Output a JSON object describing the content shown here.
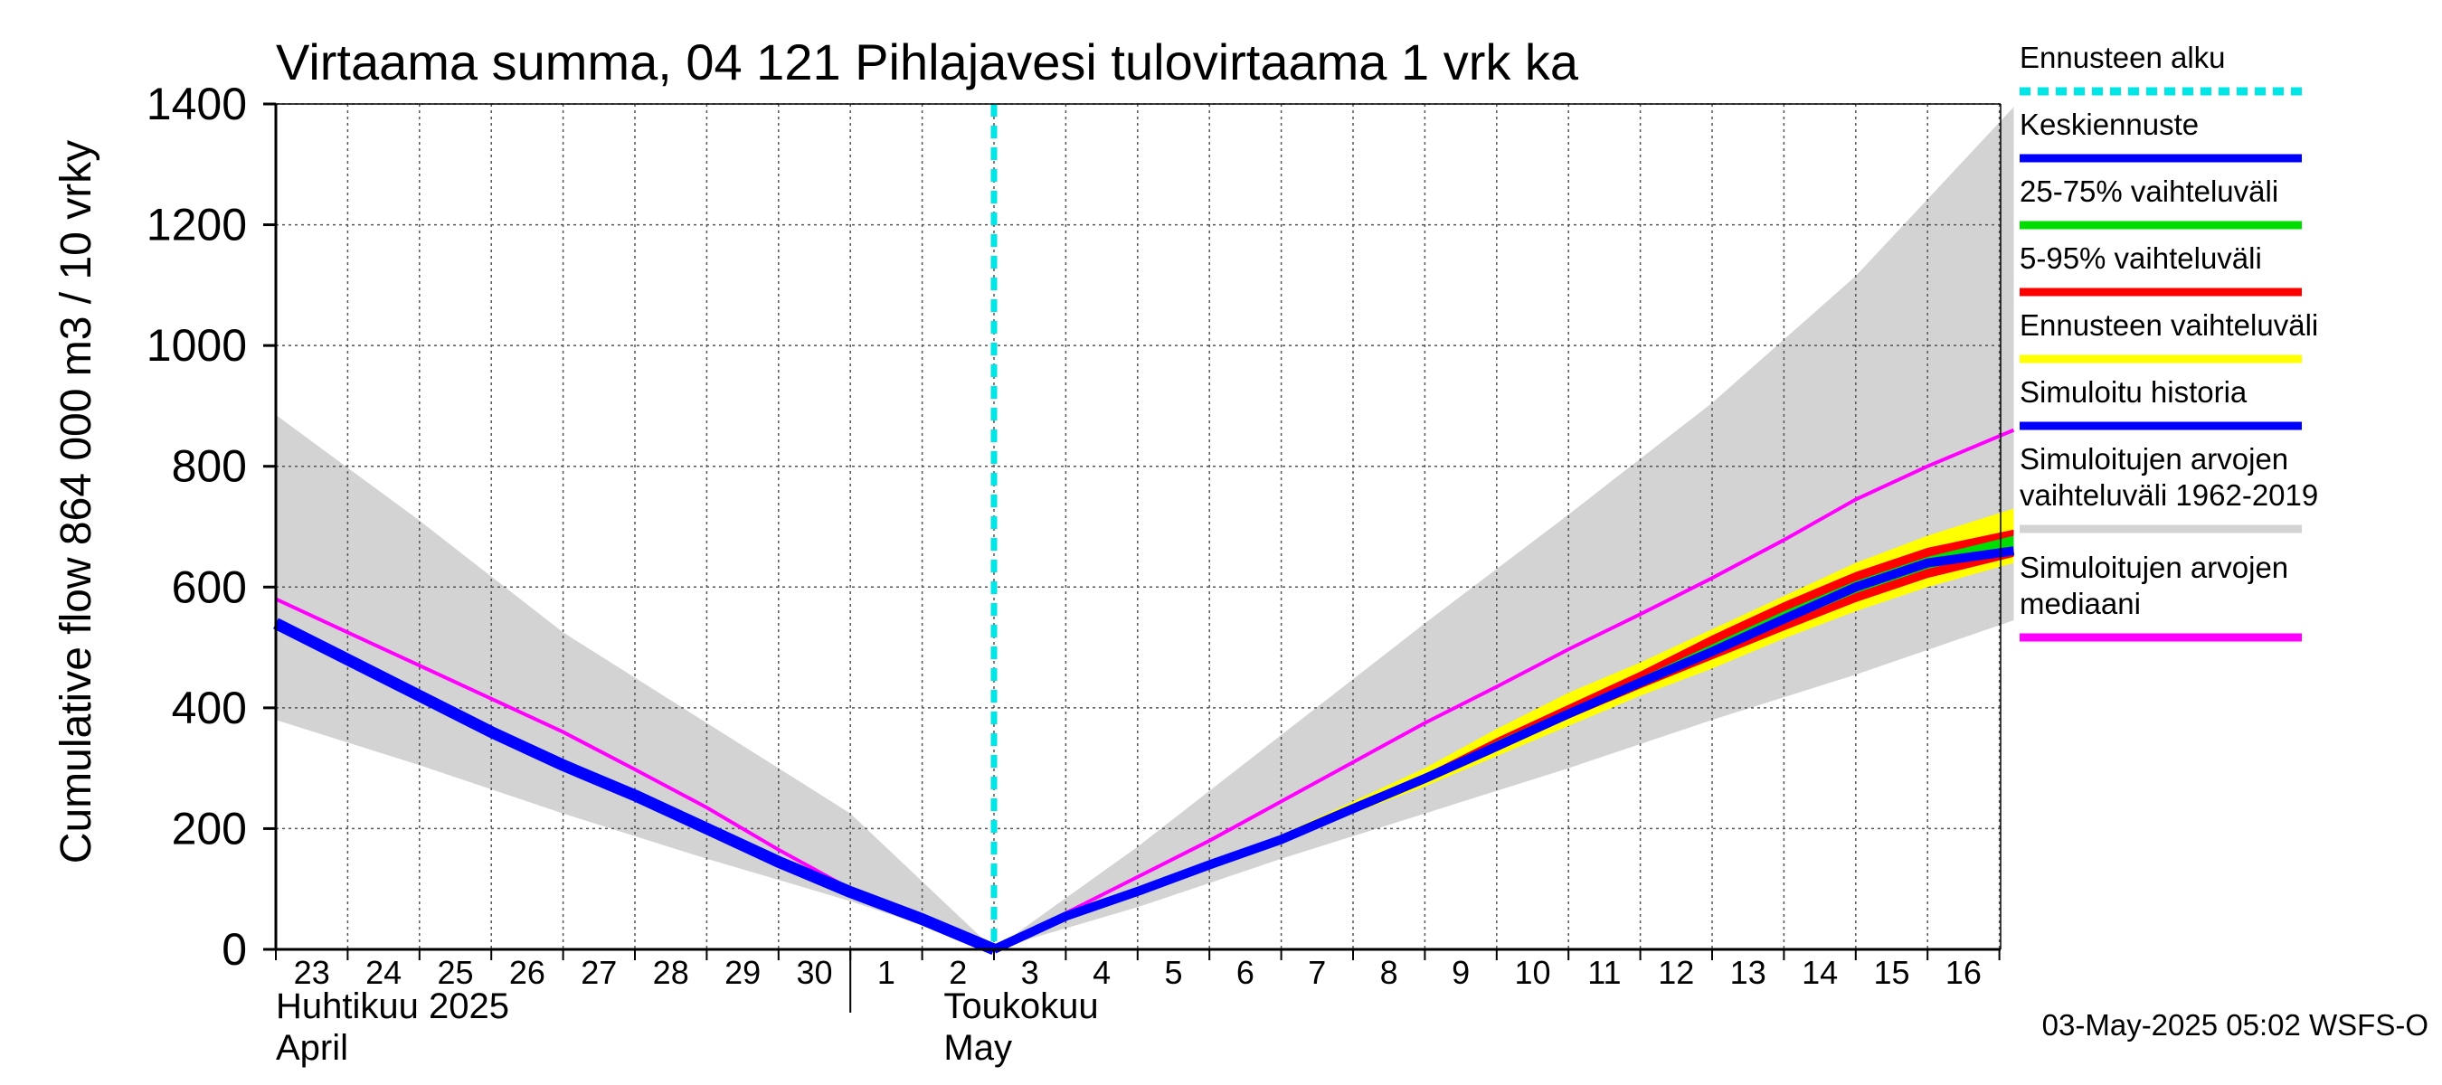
{
  "chart_data": {
    "type": "area",
    "title": "Virtaama summa, 04 121 Pihlajavesi tulovirtaama 1 vrk ka",
    "ylabel": "Cumulative flow    864 000 m3 / 10 vrky",
    "ylim": [
      0,
      1400
    ],
    "y_ticks": [
      "0",
      "200",
      "400",
      "600",
      "800",
      "1000",
      "1200",
      "1400"
    ],
    "x_tick_labels": [
      "23",
      "24",
      "25",
      "26",
      "27",
      "28",
      "29",
      "30",
      "1",
      "2",
      "3",
      "4",
      "5",
      "6",
      "7",
      "8",
      "9",
      "10",
      "11",
      "12",
      "13",
      "14",
      "15",
      "16"
    ],
    "x_range_days": [
      0,
      24.2
    ],
    "month_labels": [
      {
        "line1": "Huhtikuu  2025",
        "line2": "April"
      },
      {
        "line1": "Toukokuu",
        "line2": "May"
      }
    ],
    "forecast_start_day": 10,
    "grid": true,
    "legend_position": "right",
    "legend": [
      {
        "label": "Ennusteen alku",
        "color": "#00e5e5",
        "dashed": true
      },
      {
        "label": "Keskiennuste",
        "color": "#0000ff"
      },
      {
        "label": "25-75% vaihteluväli",
        "color": "#00dd00"
      },
      {
        "label": "5-95% vaihteluväli",
        "color": "#ff0000"
      },
      {
        "label": "Ennusteen vaihteluväli",
        "color": "#ffff00"
      },
      {
        "label": "Simuloitu historia",
        "color": "#0000ff"
      },
      {
        "label": "Simuloitujen arvojen\nvaihteluväli 1962-2019",
        "color": "#d3d3d3"
      },
      {
        "label": "Simuloitujen arvojen\nmediaani",
        "color": "#ff00ff"
      }
    ],
    "series": {
      "historical_range": {
        "upper": [
          [
            0,
            885
          ],
          [
            2,
            710
          ],
          [
            4,
            525
          ],
          [
            6,
            375
          ],
          [
            8,
            225
          ],
          [
            10,
            0
          ],
          [
            12,
            170
          ],
          [
            14,
            355
          ],
          [
            16,
            540
          ],
          [
            18,
            720
          ],
          [
            20,
            905
          ],
          [
            22,
            1115
          ],
          [
            24.2,
            1395
          ]
        ],
        "lower": [
          [
            0,
            380
          ],
          [
            2,
            305
          ],
          [
            4,
            225
          ],
          [
            6,
            150
          ],
          [
            8,
            80
          ],
          [
            10,
            0
          ],
          [
            12,
            70
          ],
          [
            14,
            150
          ],
          [
            16,
            225
          ],
          [
            18,
            300
          ],
          [
            20,
            380
          ],
          [
            22,
            455
          ],
          [
            24.2,
            545
          ]
        ]
      },
      "forecast_range": {
        "upper": [
          [
            10,
            0
          ],
          [
            11,
            60
          ],
          [
            12,
            100
          ],
          [
            13,
            145
          ],
          [
            14,
            190
          ],
          [
            15,
            245
          ],
          [
            16,
            300
          ],
          [
            17,
            365
          ],
          [
            18,
            425
          ],
          [
            19,
            475
          ],
          [
            20,
            530
          ],
          [
            21,
            585
          ],
          [
            22,
            640
          ],
          [
            23,
            685
          ],
          [
            24.2,
            730
          ]
        ],
        "lower": [
          [
            10,
            0
          ],
          [
            11,
            55
          ],
          [
            12,
            95
          ],
          [
            13,
            140
          ],
          [
            14,
            178
          ],
          [
            15,
            225
          ],
          [
            16,
            270
          ],
          [
            17,
            320
          ],
          [
            18,
            370
          ],
          [
            19,
            420
          ],
          [
            20,
            465
          ],
          [
            21,
            515
          ],
          [
            22,
            560
          ],
          [
            23,
            600
          ],
          [
            24.2,
            640
          ]
        ]
      },
      "p5_95": {
        "upper": [
          [
            10,
            0
          ],
          [
            11,
            57
          ],
          [
            12,
            98
          ],
          [
            13,
            142
          ],
          [
            14,
            185
          ],
          [
            15,
            240
          ],
          [
            16,
            290
          ],
          [
            17,
            350
          ],
          [
            18,
            405
          ],
          [
            19,
            460
          ],
          [
            20,
            520
          ],
          [
            21,
            575
          ],
          [
            22,
            625
          ],
          [
            23,
            665
          ],
          [
            24.2,
            695
          ]
        ],
        "lower": [
          [
            10,
            0
          ],
          [
            11,
            55
          ],
          [
            12,
            95
          ],
          [
            13,
            140
          ],
          [
            14,
            180
          ],
          [
            15,
            230
          ],
          [
            16,
            278
          ],
          [
            17,
            330
          ],
          [
            18,
            382
          ],
          [
            19,
            432
          ],
          [
            20,
            480
          ],
          [
            21,
            528
          ],
          [
            22,
            575
          ],
          [
            23,
            615
          ],
          [
            24.2,
            650
          ]
        ]
      },
      "p25_75": {
        "upper": [
          [
            10,
            0
          ],
          [
            11,
            56
          ],
          [
            12,
            97
          ],
          [
            13,
            141
          ],
          [
            14,
            184
          ],
          [
            15,
            238
          ],
          [
            16,
            287
          ],
          [
            17,
            345
          ],
          [
            18,
            398
          ],
          [
            19,
            450
          ],
          [
            20,
            505
          ],
          [
            21,
            560
          ],
          [
            22,
            610
          ],
          [
            23,
            650
          ],
          [
            24.2,
            685
          ]
        ],
        "lower": [
          [
            10,
            0
          ],
          [
            11,
            55
          ],
          [
            12,
            96
          ],
          [
            13,
            140
          ],
          [
            14,
            181
          ],
          [
            15,
            232
          ],
          [
            16,
            281
          ],
          [
            17,
            334
          ],
          [
            18,
            388
          ],
          [
            19,
            440
          ],
          [
            20,
            488
          ],
          [
            21,
            540
          ],
          [
            22,
            590
          ],
          [
            23,
            630
          ],
          [
            24.2,
            665
          ]
        ]
      },
      "simulated_history": [
        [
          0,
          540
        ],
        [
          1,
          480
        ],
        [
          2,
          420
        ],
        [
          3,
          360
        ],
        [
          4,
          305
        ],
        [
          5,
          255
        ],
        [
          6,
          200
        ],
        [
          7,
          145
        ],
        [
          8,
          95
        ],
        [
          9,
          50
        ],
        [
          10,
          0
        ]
      ],
      "mean_forecast": [
        [
          10,
          0
        ],
        [
          11,
          55
        ],
        [
          12,
          96
        ],
        [
          13,
          140
        ],
        [
          14,
          182
        ],
        [
          15,
          233
        ],
        [
          16,
          283
        ],
        [
          17,
          336
        ],
        [
          18,
          390
        ],
        [
          19,
          442
        ],
        [
          20,
          493
        ],
        [
          21,
          547
        ],
        [
          22,
          600
        ],
        [
          23,
          640
        ],
        [
          24.2,
          660
        ]
      ],
      "median": [
        [
          0,
          580
        ],
        [
          1,
          525
        ],
        [
          2,
          470
        ],
        [
          3,
          415
        ],
        [
          4,
          360
        ],
        [
          5,
          298
        ],
        [
          6,
          235
        ],
        [
          7,
          165
        ],
        [
          8,
          100
        ],
        [
          9,
          50
        ],
        [
          10,
          0
        ],
        [
          11,
          60
        ],
        [
          12,
          120
        ],
        [
          13,
          180
        ],
        [
          14,
          245
        ],
        [
          15,
          310
        ],
        [
          16,
          375
        ],
        [
          17,
          435
        ],
        [
          18,
          497
        ],
        [
          19,
          555
        ],
        [
          20,
          615
        ],
        [
          21,
          678
        ],
        [
          22,
          745
        ],
        [
          23,
          800
        ],
        [
          24.2,
          860
        ]
      ]
    }
  },
  "footer": {
    "timestamp": "03-May-2025 05:02 WSFS-O"
  }
}
